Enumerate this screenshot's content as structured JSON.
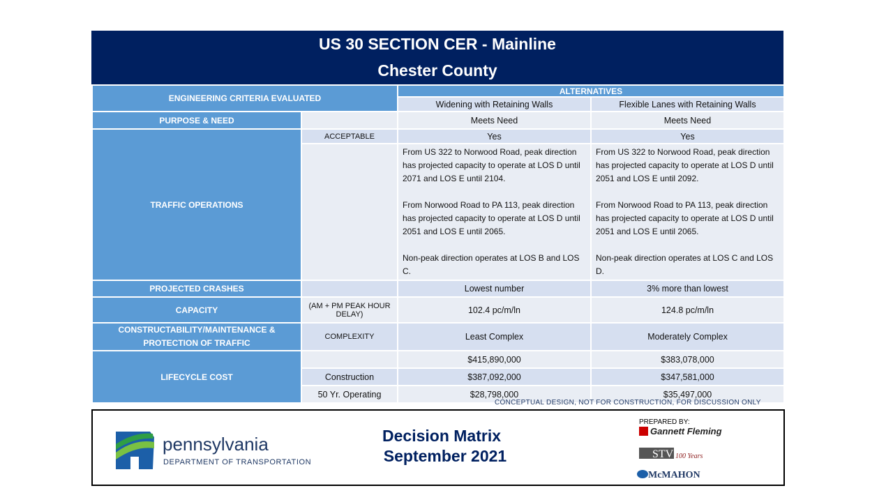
{
  "header": {
    "title": "US 30 SECTION CER - Mainline",
    "subtitle": "Chester County"
  },
  "table": {
    "criteria_header": "ENGINEERING CRITERIA EVALUATED",
    "alternatives_header": "ALTERNATIVES",
    "alternatives": [
      "Widening with Retaining Walls",
      "Flexible Lanes with Retaining Walls"
    ],
    "rows": [
      {
        "criterion": "PURPOSE & NEED",
        "values": [
          "Meets Need",
          "Meets Need"
        ]
      },
      {
        "criterion": "TRAFFIC OPERATIONS",
        "measure": "ACCEPTABLE",
        "values": [
          "Yes",
          "Yes"
        ],
        "details": [
          [
            "From US 322  to Norwood Road, peak direction has projected capacity to operate at LOS D until 2071  and LOS E  until 2104.",
            "From Norwood Road to PA 113,  peak direction has projected capacity to operate at LOS D until 2051  and LOS E  until 2065.",
            "Non-peak direction operates at LOS B and LOS C."
          ],
          [
            "From US 322  to Norwood Road, peak direction has projected capacity to operate at LOS D until 2051  and LOS E  until 2092.",
            "From Norwood Road to PA 113,  peak direction has projected capacity to operate at LOS D until 2051  and LOS E  until 2065.",
            "Non-peak direction operates at LOS C and LOS D."
          ]
        ]
      },
      {
        "criterion": "PROJECTED CRASHES",
        "values": [
          "Lowest number",
          "3% more than lowest"
        ]
      },
      {
        "criterion": "CAPACITY",
        "measure": "(AM + PM PEAK HOUR DELAY)",
        "values": [
          "102.4  pc/m/ln",
          "124.8  pc/m/ln"
        ]
      },
      {
        "criterion": "CONSTRUCTABILITY/MAINTENANCE & PROTECTION OF TRAFFIC",
        "measure": "COMPLEXITY",
        "values": [
          "Least Complex",
          "Moderately Complex"
        ]
      },
      {
        "criterion": "LIFECYCLE COST",
        "values": [
          "$415,890,000",
          "$383,078,000"
        ],
        "sub": [
          {
            "label": "Construction",
            "values": [
              "$387,092,000",
              "$347,581,000"
            ]
          },
          {
            "label": "50 Yr. Operating",
            "values": [
              "$28,798,000",
              "$35,497,000"
            ]
          }
        ]
      }
    ]
  },
  "note": "CONCEPTUAL  DESIGN,  NOT FOR CONSTRUCTION,  FOR DISCUSSION  ONLY",
  "footer": {
    "agency": "pennsylvania",
    "department": "DEPARTMENT OF TRANSPORTATION",
    "title": [
      "Decision Matrix",
      "September 2021"
    ],
    "prepared_by": "PREPARED  BY:",
    "firms": [
      "Gannett Fleming",
      "STV",
      "McMAHON"
    ],
    "stv_years": "100 Years"
  }
}
